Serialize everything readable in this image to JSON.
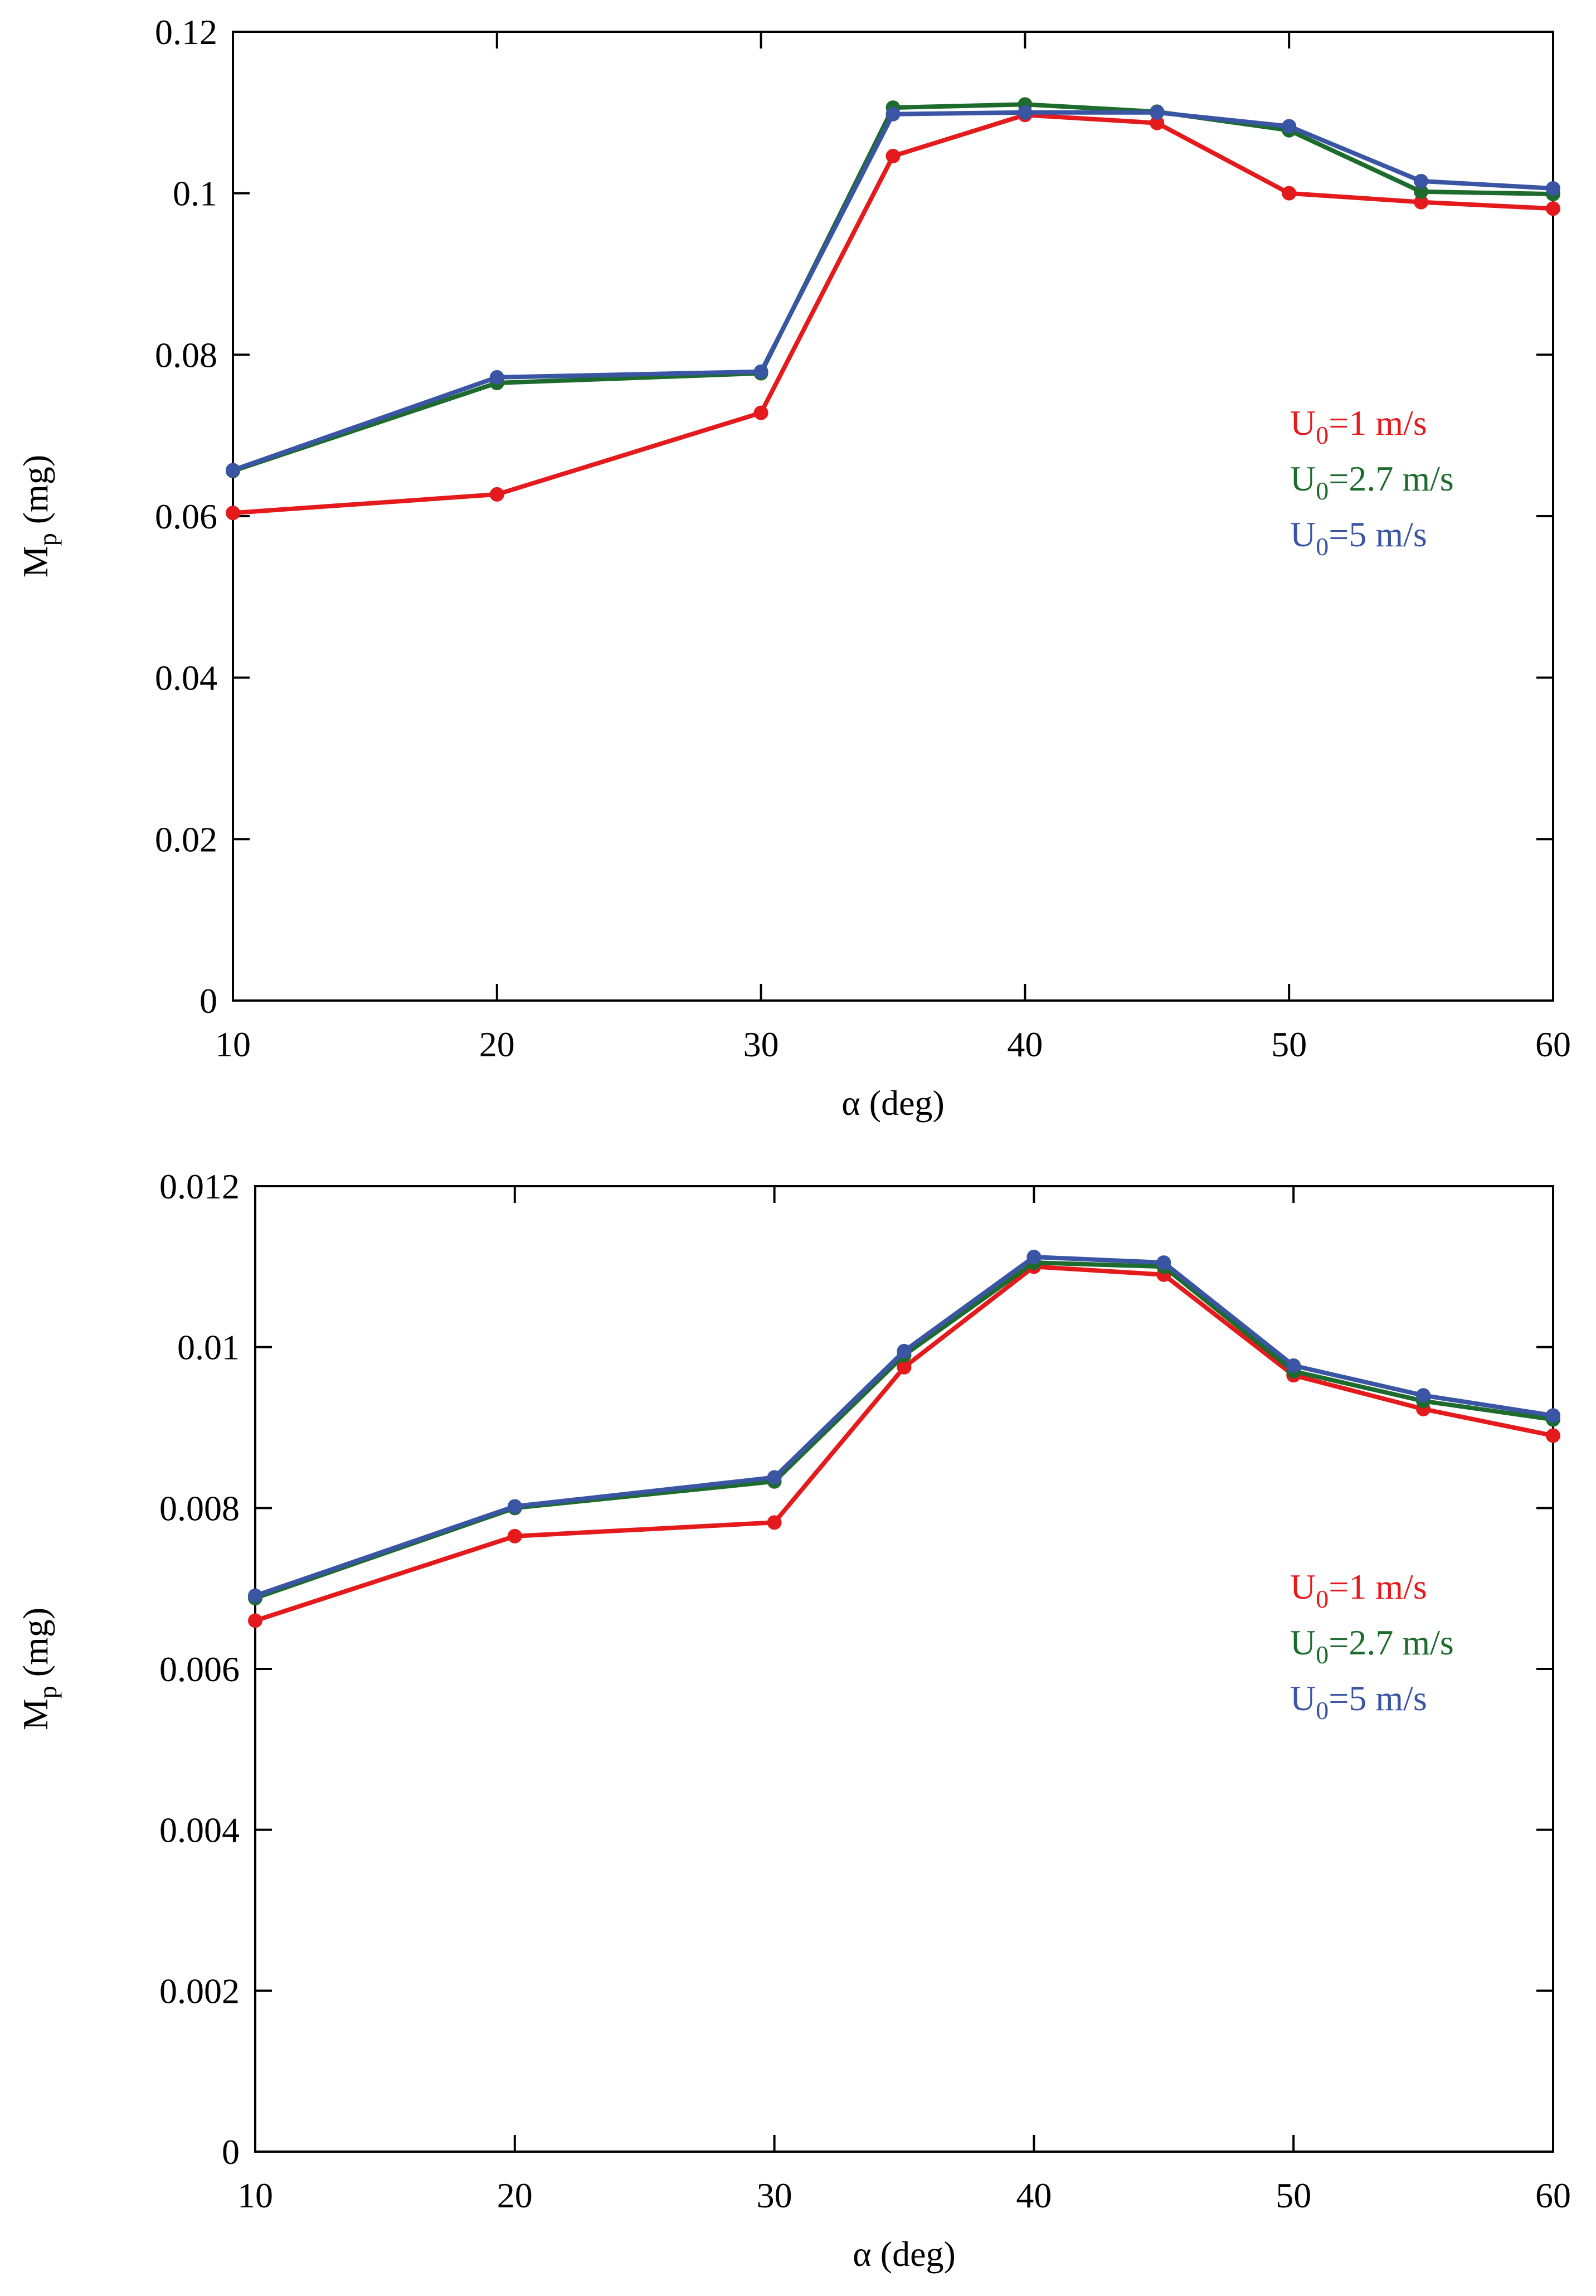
{
  "chart_data": [
    {
      "type": "line",
      "title": "",
      "xlabel": "α (deg)",
      "ylabel_main": "M",
      "ylabel_sub": "p",
      "ylabel_unit": " (mg)",
      "xlim": [
        10,
        60
      ],
      "ylim": [
        0,
        0.12
      ],
      "x_ticks": [
        10,
        20,
        30,
        40,
        50,
        60
      ],
      "x_tick_labels": [
        "10",
        "20",
        "30",
        "40",
        "50",
        "60"
      ],
      "y_ticks": [
        0,
        0.02,
        0.04,
        0.06,
        0.08,
        0.1,
        0.12
      ],
      "y_tick_labels": [
        "0",
        "0.02",
        "0.04",
        "0.06",
        "0.08",
        "0.1",
        "0.12"
      ],
      "x": [
        10,
        20,
        30,
        35,
        40,
        45,
        50,
        55,
        60
      ],
      "grid": false,
      "legend_position": "right",
      "series": [
        {
          "name": "U0=1 m/s",
          "label_main": "U",
          "label_sub": "0",
          "label_rest": "=1 m/s",
          "color": "#e41a1c",
          "values": [
            0.0604,
            0.0627,
            0.0728,
            0.1046,
            0.1097,
            0.1087,
            0.1,
            0.0989,
            0.0981
          ]
        },
        {
          "name": "U0=2.7 m/s",
          "label_main": "U",
          "label_sub": "0",
          "label_rest": "=2.7 m/s",
          "color": "#1e6b2e",
          "values": [
            0.0656,
            0.0765,
            0.0777,
            0.1106,
            0.111,
            0.1101,
            0.1078,
            0.1002,
            0.0999
          ]
        },
        {
          "name": "U0=5 m/s",
          "label_main": "U",
          "label_sub": "0",
          "label_rest": "=5 m/s",
          "color": "#3a55a4",
          "values": [
            0.0657,
            0.0772,
            0.0779,
            0.1098,
            0.11,
            0.11,
            0.1083,
            0.1015,
            0.1006
          ]
        }
      ]
    },
    {
      "type": "line",
      "title": "",
      "xlabel": "α (deg)",
      "ylabel_main": "M",
      "ylabel_sub": "p",
      "ylabel_unit": " (mg)",
      "xlim": [
        10,
        60
      ],
      "ylim": [
        0,
        0.012
      ],
      "x_ticks": [
        10,
        20,
        30,
        40,
        50,
        60
      ],
      "x_tick_labels": [
        "10",
        "20",
        "30",
        "40",
        "50",
        "60"
      ],
      "y_ticks": [
        0,
        0.002,
        0.004,
        0.006,
        0.008,
        0.01,
        0.012
      ],
      "y_tick_labels": [
        "0",
        "0.002",
        "0.004",
        "0.006",
        "0.008",
        "0.01",
        "0.012"
      ],
      "x": [
        10,
        20,
        30,
        35,
        40,
        45,
        50,
        55,
        60
      ],
      "grid": false,
      "legend_position": "right",
      "series": [
        {
          "name": "U0=1 m/s",
          "label_main": "U",
          "label_sub": "0",
          "label_rest": "=1 m/s",
          "color": "#e41a1c",
          "values": [
            0.0066,
            0.00765,
            0.00782,
            0.00975,
            0.011,
            0.0109,
            0.00965,
            0.00923,
            0.0089
          ]
        },
        {
          "name": "U0=2.7 m/s",
          "label_main": "U",
          "label_sub": "0",
          "label_rest": "=2.7 m/s",
          "color": "#1e6b2e",
          "values": [
            0.00688,
            0.008,
            0.00833,
            0.0099,
            0.01105,
            0.011,
            0.0097,
            0.00933,
            0.0091
          ]
        },
        {
          "name": "U0=5 m/s",
          "label_main": "U",
          "label_sub": "0",
          "label_rest": "=5 m/s",
          "color": "#3a55a4",
          "values": [
            0.00691,
            0.00802,
            0.00838,
            0.00995,
            0.01112,
            0.01105,
            0.00977,
            0.0094,
            0.00915
          ]
        }
      ]
    }
  ]
}
